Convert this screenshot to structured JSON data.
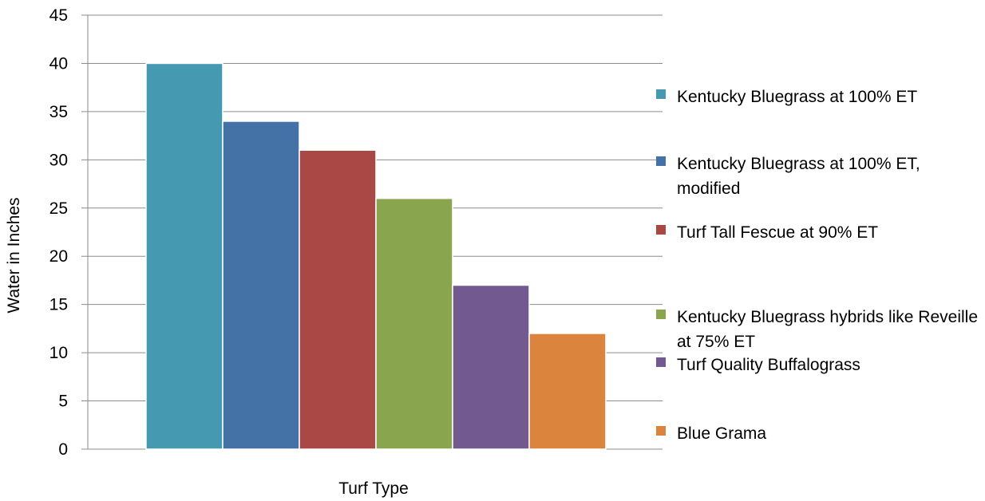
{
  "chart_data": {
    "type": "bar",
    "xlabel": "Turf Type",
    "ylabel": "Water in Inches",
    "ylim": [
      0,
      45
    ],
    "ytick_step": 5,
    "grid": true,
    "legend_position": "right",
    "series": [
      {
        "name": "Kentucky Bluegrass at 100% ET",
        "value": 40,
        "color": "#4599B0"
      },
      {
        "name": "Kentucky Bluegrass at 100% ET, modified",
        "value": 34,
        "color": "#4472A7"
      },
      {
        "name": "Turf Tall Fescue at 90% ET",
        "value": 31,
        "color": "#AA4845"
      },
      {
        "name": "Kentucky Bluegrass hybrids like Reveille at 75% ET",
        "value": 26,
        "color": "#89A54E"
      },
      {
        "name": "Turf Quality Buffalograss",
        "value": 17,
        "color": "#72598F"
      },
      {
        "name": "Blue Grama",
        "value": 12,
        "color": "#DB843D"
      }
    ]
  }
}
